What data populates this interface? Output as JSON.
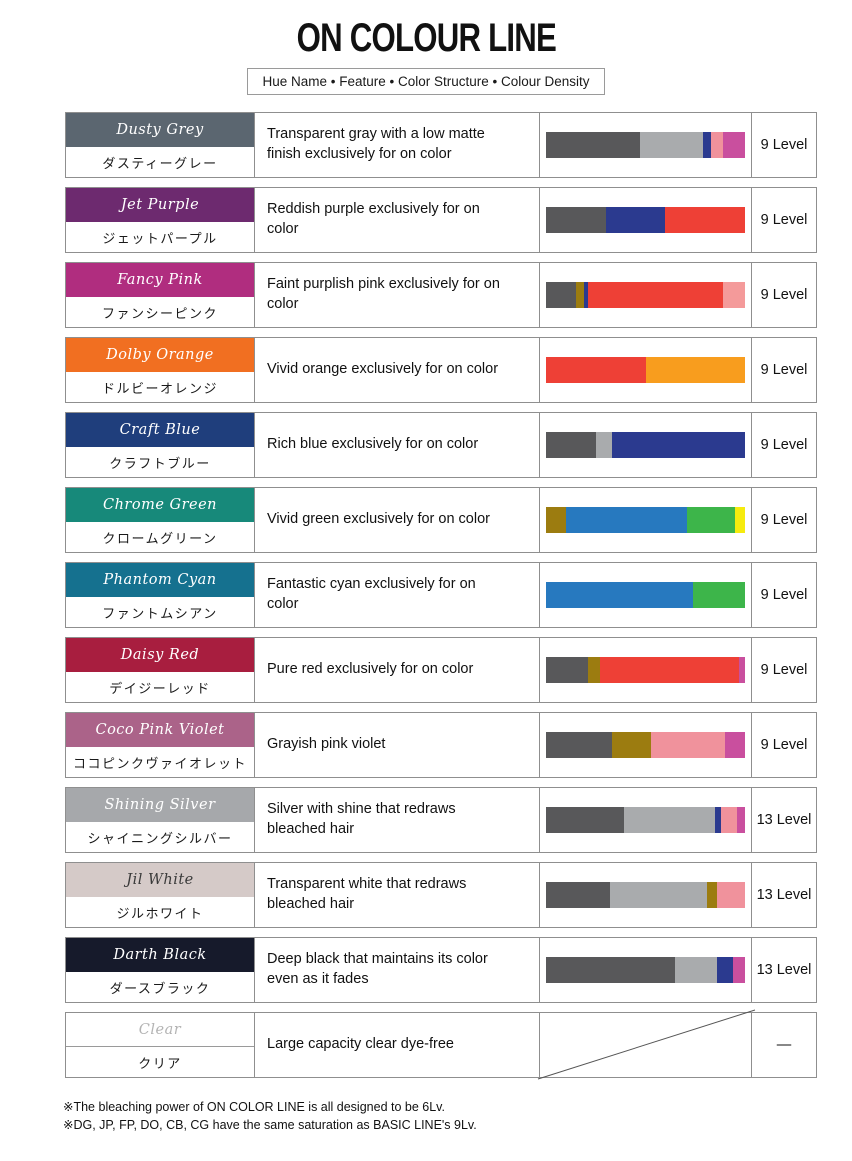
{
  "title": "ON COLOUR LINE",
  "subtitle": "Hue Name • Feature • Color Structure • Colour Density",
  "notes": [
    "※The bleaching power of ON COLOR LINE is all designed to be 6Lv.",
    "※DG, JP, FP, DO, CB, CG have the same saturation as BASIC LINE's 9Lv."
  ],
  "palette": {
    "dark_gray": "#58585a",
    "light_gray": "#a9abad",
    "navy": "#2b3a8f",
    "salmon": "#f0929c",
    "magenta": "#c94f9e",
    "red": "#ee4036",
    "light_pink": "#f49a9a",
    "olive": "#9c7c10",
    "orange": "#f89d1e",
    "blue": "#2779bf",
    "green": "#3db54a",
    "yellow": "#f6eb0e"
  },
  "rows": [
    {
      "name_en": "Dusty Grey",
      "name_jp": "ダスティーグレー",
      "feature": "Transparent gray with a low matte finish exclusively for on color",
      "density": "9 Level",
      "header_bg": "#5b6670",
      "header_text": "#ffffff",
      "band_divider": false,
      "diagonal": false,
      "segments": [
        {
          "color": "#58585a",
          "pct": 47
        },
        {
          "color": "#a9abad",
          "pct": 32
        },
        {
          "color": "#2b3a8f",
          "pct": 4
        },
        {
          "color": "#f0929c",
          "pct": 6
        },
        {
          "color": "#c94f9e",
          "pct": 11
        }
      ]
    },
    {
      "name_en": "Jet Purple",
      "name_jp": "ジェットパープル",
      "feature": "Reddish purple exclusively for on color",
      "density": "9 Level",
      "header_bg": "#6d2a6f",
      "header_text": "#ffffff",
      "band_divider": false,
      "diagonal": false,
      "segments": [
        {
          "color": "#58585a",
          "pct": 30
        },
        {
          "color": "#2b3a8f",
          "pct": 30
        },
        {
          "color": "#ee4036",
          "pct": 40
        }
      ]
    },
    {
      "name_en": "Fancy Pink",
      "name_jp": "ファンシーピンク",
      "feature": "Faint purplish pink exclusively for on color",
      "density": "9 Level",
      "header_bg": "#b02d7f",
      "header_text": "#ffffff",
      "band_divider": false,
      "diagonal": false,
      "segments": [
        {
          "color": "#58585a",
          "pct": 15
        },
        {
          "color": "#9c7c10",
          "pct": 4
        },
        {
          "color": "#2b3a8f",
          "pct": 2
        },
        {
          "color": "#ee4036",
          "pct": 68
        },
        {
          "color": "#f49a9a",
          "pct": 11
        }
      ]
    },
    {
      "name_en": "Dolby Orange",
      "name_jp": "ドルビーオレンジ",
      "feature": "Vivid orange exclusively for on color",
      "density": "9 Level",
      "header_bg": "#f16f21",
      "header_text": "#ffffff",
      "band_divider": false,
      "diagonal": false,
      "segments": [
        {
          "color": "#ee4036",
          "pct": 50
        },
        {
          "color": "#f89d1e",
          "pct": 50
        }
      ]
    },
    {
      "name_en": "Craft Blue",
      "name_jp": "クラフトブルー",
      "feature": "Rich blue exclusively for on color",
      "density": "9 Level",
      "header_bg": "#1f3e7c",
      "header_text": "#ffffff",
      "band_divider": false,
      "diagonal": false,
      "segments": [
        {
          "color": "#58585a",
          "pct": 25
        },
        {
          "color": "#a9abad",
          "pct": 8
        },
        {
          "color": "#2b3a8f",
          "pct": 67
        }
      ]
    },
    {
      "name_en": "Chrome Green",
      "name_jp": "クロームグリーン",
      "feature": "Vivid green exclusively for on color",
      "density": "9 Level",
      "header_bg": "#17897a",
      "header_text": "#ffffff",
      "band_divider": false,
      "diagonal": false,
      "segments": [
        {
          "color": "#9c7c10",
          "pct": 10
        },
        {
          "color": "#2779bf",
          "pct": 61
        },
        {
          "color": "#3db54a",
          "pct": 24
        },
        {
          "color": "#f6eb0e",
          "pct": 5
        }
      ]
    },
    {
      "name_en": "Phantom Cyan",
      "name_jp": "ファントムシアン",
      "feature": "Fantastic cyan exclusively for on color",
      "density": "9 Level",
      "header_bg": "#15718f",
      "header_text": "#ffffff",
      "band_divider": false,
      "diagonal": false,
      "segments": [
        {
          "color": "#2779bf",
          "pct": 74
        },
        {
          "color": "#3db54a",
          "pct": 26
        }
      ]
    },
    {
      "name_en": "Daisy Red",
      "name_jp": "デイジーレッド",
      "feature": "Pure red exclusively for on color",
      "density": "9 Level",
      "header_bg": "#a81e3f",
      "header_text": "#ffffff",
      "band_divider": false,
      "diagonal": false,
      "segments": [
        {
          "color": "#58585a",
          "pct": 21
        },
        {
          "color": "#9c7c10",
          "pct": 6
        },
        {
          "color": "#ee4036",
          "pct": 70
        },
        {
          "color": "#c94f9e",
          "pct": 3
        }
      ]
    },
    {
      "name_en": "Coco Pink Violet",
      "name_jp": "ココピンクヴァイオレット",
      "feature": "Grayish pink violet",
      "density": "9 Level",
      "header_bg": "#ab6389",
      "header_text": "#ffffff",
      "band_divider": false,
      "diagonal": false,
      "segments": [
        {
          "color": "#58585a",
          "pct": 33
        },
        {
          "color": "#9c7c10",
          "pct": 20
        },
        {
          "color": "#f0929c",
          "pct": 37
        },
        {
          "color": "#c94f9e",
          "pct": 10
        }
      ]
    },
    {
      "name_en": "Shining Silver",
      "name_jp": "シャイニングシルバー",
      "feature": "Silver with shine that redraws bleached hair",
      "density": "13 Level",
      "header_bg": "#a6a8ab",
      "header_text": "#ffffff",
      "band_divider": false,
      "diagonal": false,
      "segments": [
        {
          "color": "#58585a",
          "pct": 39
        },
        {
          "color": "#a9abad",
          "pct": 46
        },
        {
          "color": "#2b3a8f",
          "pct": 3
        },
        {
          "color": "#f0929c",
          "pct": 8
        },
        {
          "color": "#c94f9e",
          "pct": 4
        }
      ]
    },
    {
      "name_en": "Jil White",
      "name_jp": "ジルホワイト",
      "feature": "Transparent white that redraws bleached hair",
      "density": "13 Level",
      "header_bg": "#d5cac8",
      "header_text": "#3a3a3a",
      "band_divider": false,
      "diagonal": false,
      "segments": [
        {
          "color": "#58585a",
          "pct": 32
        },
        {
          "color": "#a9abad",
          "pct": 49
        },
        {
          "color": "#9c7c10",
          "pct": 5
        },
        {
          "color": "#f0929c",
          "pct": 14
        }
      ]
    },
    {
      "name_en": "Darth Black",
      "name_jp": "ダースブラック",
      "feature": "Deep black that maintains its color even as it fades",
      "density": "13 Level",
      "header_bg": "#161a2b",
      "header_text": "#ffffff",
      "band_divider": false,
      "diagonal": false,
      "segments": [
        {
          "color": "#58585a",
          "pct": 65
        },
        {
          "color": "#a9abad",
          "pct": 21
        },
        {
          "color": "#2b3a8f",
          "pct": 8
        },
        {
          "color": "#c94f9e",
          "pct": 6
        }
      ]
    },
    {
      "name_en": "Clear",
      "name_jp": "クリア",
      "feature": "Large capacity clear dye-free",
      "density": "—",
      "header_bg": "#ffffff",
      "header_text": "#b4b4b4",
      "band_divider": true,
      "diagonal": true,
      "segments": []
    }
  ]
}
